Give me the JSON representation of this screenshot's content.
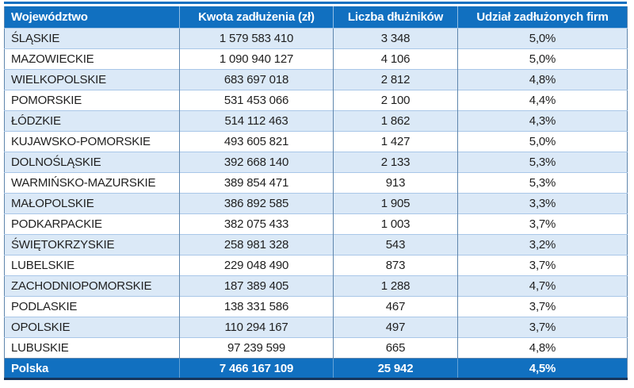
{
  "chart_data": {
    "type": "table",
    "columns": [
      "Województwo",
      "Kwota zadłużenia (zł)",
      "Liczba dłużników",
      "Udział zadłużonych firm"
    ],
    "rows": [
      [
        "ŚLĄSKIE",
        "1 579 583 410",
        "3 348",
        "5,0%"
      ],
      [
        "MAZOWIECKIE",
        "1 090 940 127",
        "4 106",
        "5,0%"
      ],
      [
        "WIELKOPOLSKIE",
        "683 697 018",
        "2 812",
        "4,8%"
      ],
      [
        "POMORSKIE",
        "531 453 066",
        "2 100",
        "4,4%"
      ],
      [
        "ŁÓDZKIE",
        "514 112 463",
        "1 862",
        "4,3%"
      ],
      [
        "KUJAWSKO-POMORSKIE",
        "493 605 821",
        "1 427",
        "5,0%"
      ],
      [
        "DOLNOŚLĄSKIE",
        "392 668 140",
        "2 133",
        "5,3%"
      ],
      [
        "WARMIŃSKO-MAZURSKIE",
        "389 854 471",
        "913",
        "5,3%"
      ],
      [
        "MAŁOPOLSKIE",
        "386 892 585",
        "1 905",
        "3,3%"
      ],
      [
        "PODKARPACKIE",
        "382 075 433",
        "1 003",
        "3,7%"
      ],
      [
        "ŚWIĘTOKRZYSKIE",
        "258 981 328",
        "543",
        "3,2%"
      ],
      [
        "LUBELSKIE",
        "229 048 490",
        "873",
        "3,7%"
      ],
      [
        "ZACHODNIOPOMORSKIE",
        "187 389 405",
        "1 288",
        "4,7%"
      ],
      [
        "PODLASKIE",
        "138 331 586",
        "467",
        "3,7%"
      ],
      [
        "OPOLSKIE",
        "110 294 167",
        "497",
        "3,7%"
      ],
      [
        "LUBUSKIE",
        "97 239 599",
        "665",
        "4,8%"
      ]
    ],
    "footer": [
      "Polska",
      "7 466 167 109",
      "25 942",
      "4,5%"
    ]
  },
  "colors": {
    "header_bg": "#1170C0",
    "footer_bg": "#1170C0",
    "alt_row_bg": "#DBE9F7",
    "row_bg": "#FFFFFF",
    "h_border": "#A9C7E8",
    "v_border": "#5F86AD",
    "outer_bottom_border": "#16365D",
    "text": "#1F1F1F"
  }
}
